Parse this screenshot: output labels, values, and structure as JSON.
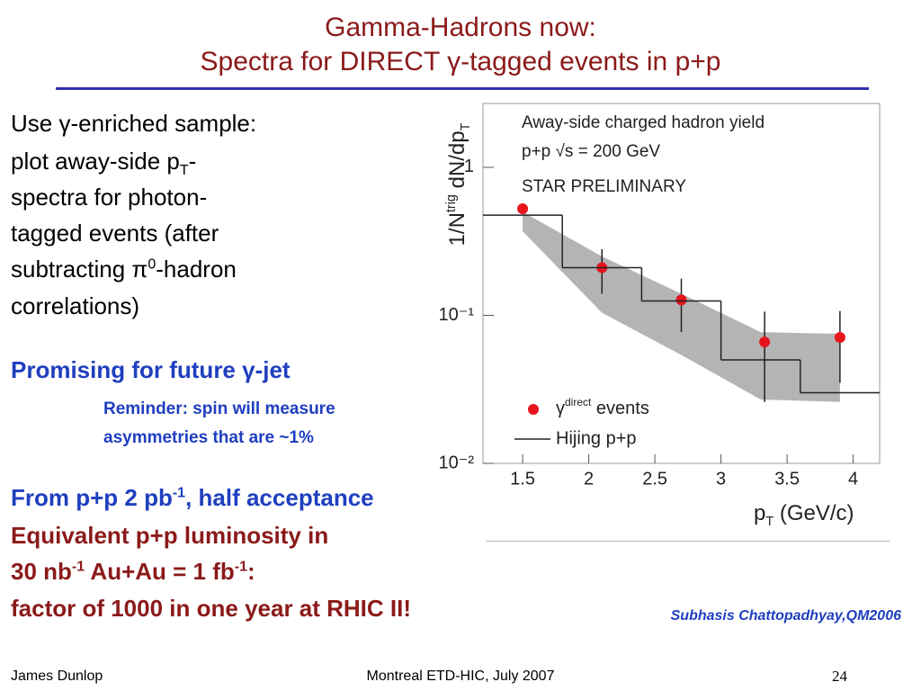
{
  "title": [
    "Gamma-Hadrons now:",
    "Spectra for DIRECT γ-tagged events in p+p"
  ],
  "body": {
    "lines": [
      [
        "Use γ-enriched sample:"
      ],
      [
        "plot away-side p",
        "T",
        "-"
      ],
      [
        "spectra for photon-"
      ],
      [
        "tagged events (after"
      ],
      [
        "subtracting π",
        "0",
        "-hadron"
      ],
      [
        "correlations)"
      ]
    ],
    "promising": "Promising for future γ-jet",
    "reminder": [
      "Reminder: spin will measure",
      "asymmetries that are ~1%"
    ],
    "from": [
      "From p+p 2 pb",
      "-1",
      ", half acceptance"
    ],
    "equiv": "Equivalent p+p luminosity in",
    "nb": [
      "30 nb",
      "-1",
      " Au+Au = 1 fb",
      "-1",
      ":"
    ],
    "factor": "factor of 1000 in one year at RHIC II!"
  },
  "citation": "Subhasis Chattopadhyay,QM2006",
  "footer": {
    "left": "James Dunlop",
    "center": "Montreal ETD-HIC, July 2007",
    "page": "24"
  },
  "chart_data": {
    "type": "scatter",
    "log_y": true,
    "annotations": [
      "Away-side charged hadron yield",
      "p+p √s = 200 GeV",
      "STAR PRELIMINARY"
    ],
    "ylabel": [
      "1/N",
      "trig",
      " dN/dp",
      "T"
    ],
    "xlabel": [
      "p",
      "T",
      " (GeV/c)"
    ],
    "xlim": [
      1.2,
      4.2
    ],
    "ylim": [
      0.01,
      2.7
    ],
    "xticks": [
      1.5,
      2,
      2.5,
      3,
      3.5,
      4
    ],
    "yticks": [
      1,
      {
        "value": 0.1,
        "label": "10⁻¹"
      },
      {
        "value": 0.01,
        "label": "10⁻²"
      }
    ],
    "band": {
      "color": "#b4b4b4",
      "x": [
        1.5,
        2.1,
        2.7,
        3.3,
        3.9
      ],
      "upper": [
        0.5,
        0.25,
        0.14,
        0.077,
        0.075
      ],
      "lower": [
        0.37,
        0.104,
        0.054,
        0.027,
        0.026
      ]
    },
    "series": [
      {
        "name": [
          "γ",
          "direct",
          " events"
        ],
        "type": "points",
        "color": "#e8141c",
        "x": [
          1.5,
          2.1,
          2.7,
          3.33,
          3.9
        ],
        "values": [
          0.525,
          0.21,
          0.127,
          0.066,
          0.071
        ],
        "errors": [
          0.03,
          0.07,
          0.05,
          0.04,
          0.036
        ]
      },
      {
        "name": "Hijing p+p",
        "type": "step",
        "color": "#222222",
        "bins": [
          1.2,
          1.8,
          2.4,
          3.0,
          3.6,
          4.2
        ],
        "values": [
          0.475,
          0.21,
          0.125,
          0.05,
          0.03
        ]
      }
    ]
  }
}
